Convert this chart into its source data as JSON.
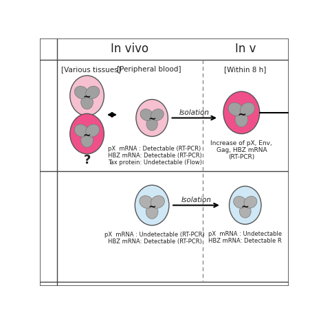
{
  "bg_color": "#ffffff",
  "pink_light": "#f5c0d0",
  "pink_dark": "#f0508a",
  "blue_light": "#d0e8f5",
  "gray_virus": "#a0a0a0",
  "header_invivo": "In vivo",
  "header_invitro": "In v",
  "col_header_tissues": "[Various tissues]",
  "col_header_blood": "[Peripheral blood]",
  "col_header_within": "[Within 8 h]",
  "text_row1_center": [
    "pX  mRNA : Detectable (RT-PCR)",
    "HBZ mRNA: Detectable (RT-PCR)",
    "Tax protein: Undetectable (Flow)"
  ],
  "text_row1_right": [
    "Increase of pX, Env,",
    "Gag, HBZ mRNA",
    "(RT-PCR)"
  ],
  "text_row2_center": [
    "pX  mRNA : Undetectable (RT-PCR)",
    "HBZ mRNA: Detectable (RT-PCR)"
  ],
  "text_row2_right": [
    "pX  mRNA : Undetectable",
    "HBZ mRNA: Detectable R"
  ],
  "question_mark": "?",
  "isolation_label": "Isolation",
  "isolation_label2": "Isolation",
  "line_color": "#444444",
  "dashed_color": "#888888",
  "text_color": "#222222"
}
